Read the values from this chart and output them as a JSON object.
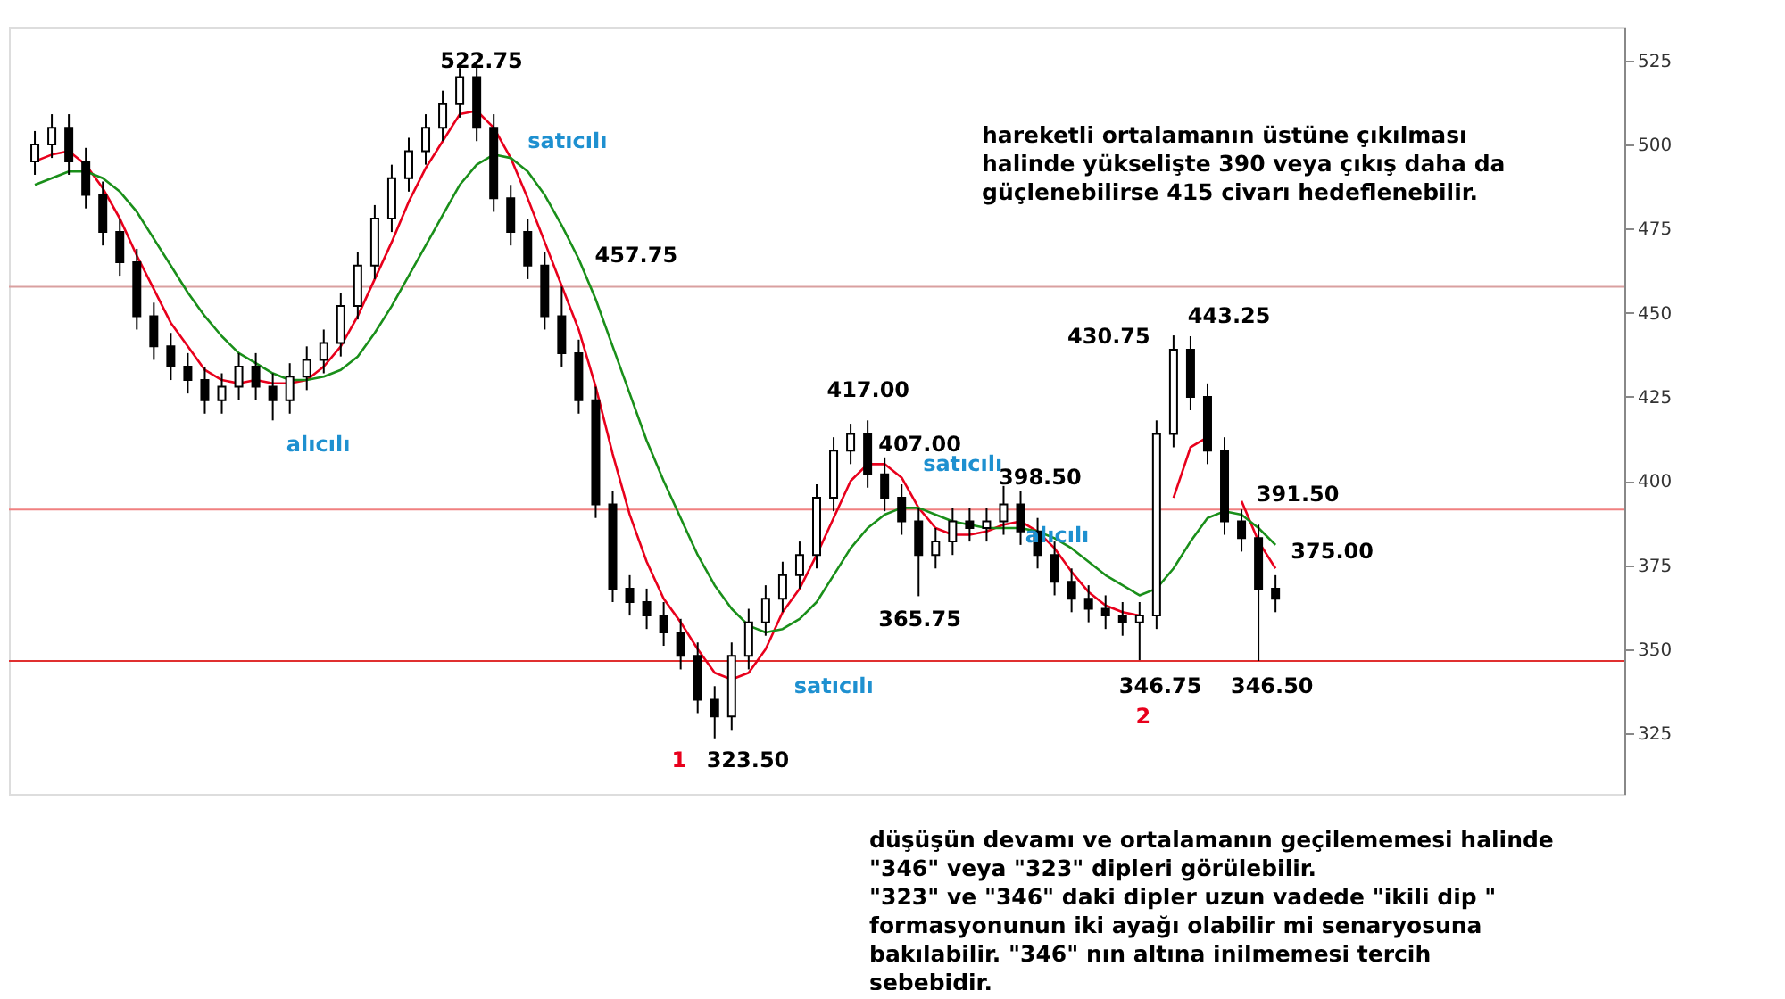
{
  "chart_data": {
    "type": "candlestick",
    "categories": [
      null,
      null,
      null,
      null,
      null,
      null,
      null,
      null,
      null,
      null,
      null,
      null,
      null,
      null,
      null,
      null,
      null,
      null,
      null,
      null,
      null,
      null,
      null,
      null,
      null,
      null,
      null,
      null,
      null,
      null,
      null,
      null,
      null,
      null,
      null,
      null,
      null,
      null,
      null,
      null,
      null,
      null,
      null,
      null,
      null,
      null,
      null,
      null,
      null,
      null,
      null,
      null,
      null,
      null,
      null,
      null,
      null,
      null,
      null,
      null,
      null,
      null,
      null,
      null,
      null,
      null,
      null,
      null,
      null,
      null,
      null,
      null,
      null,
      null
    ],
    "ohlc": [
      [
        495,
        504,
        491,
        500
      ],
      [
        500,
        509,
        496,
        505
      ],
      [
        505,
        509,
        491,
        495
      ],
      [
        495,
        499,
        481,
        485
      ],
      [
        485,
        489,
        470,
        474
      ],
      [
        474,
        478,
        461,
        465
      ],
      [
        465,
        469,
        445,
        449
      ],
      [
        449,
        453,
        436,
        440
      ],
      [
        440,
        444,
        430,
        434
      ],
      [
        434,
        438,
        426,
        430
      ],
      [
        430,
        434,
        420,
        424
      ],
      [
        424,
        432,
        420,
        428
      ],
      [
        428,
        438,
        424,
        434
      ],
      [
        434,
        438,
        424,
        428
      ],
      [
        428,
        432,
        418,
        424
      ],
      [
        424,
        435,
        420,
        431
      ],
      [
        431,
        440,
        427,
        436
      ],
      [
        436,
        445,
        432,
        441
      ],
      [
        441,
        456,
        437,
        452
      ],
      [
        452,
        468,
        448,
        464
      ],
      [
        464,
        482,
        460,
        478
      ],
      [
        478,
        494,
        474,
        490
      ],
      [
        490,
        502,
        486,
        498
      ],
      [
        498,
        509,
        494,
        505
      ],
      [
        505,
        516,
        501,
        512
      ],
      [
        512,
        522.75,
        508,
        520
      ],
      [
        520,
        524,
        501,
        505
      ],
      [
        505,
        509,
        480,
        484
      ],
      [
        484,
        488,
        470,
        474
      ],
      [
        474,
        478,
        460,
        464
      ],
      [
        464,
        468,
        445,
        449
      ],
      [
        449,
        457.75,
        434,
        438
      ],
      [
        438,
        442,
        420,
        424
      ],
      [
        424,
        428,
        389,
        393
      ],
      [
        393,
        397,
        364,
        368
      ],
      [
        368,
        372,
        360,
        364
      ],
      [
        364,
        368,
        356,
        360
      ],
      [
        360,
        364,
        351,
        355
      ],
      [
        355,
        359,
        344,
        348
      ],
      [
        348,
        352,
        331,
        335
      ],
      [
        335,
        339,
        323.5,
        330
      ],
      [
        330,
        352,
        326,
        348
      ],
      [
        348,
        362,
        344,
        358
      ],
      [
        358,
        369,
        354,
        365
      ],
      [
        365,
        376,
        361,
        372
      ],
      [
        372,
        382,
        368,
        378
      ],
      [
        378,
        399,
        374,
        395
      ],
      [
        395,
        413,
        391,
        409
      ],
      [
        409,
        417,
        405,
        414
      ],
      [
        414,
        418,
        398,
        402
      ],
      [
        402,
        407,
        391,
        395
      ],
      [
        395,
        399,
        384,
        388
      ],
      [
        388,
        392,
        365.75,
        378
      ],
      [
        378,
        386,
        374,
        382
      ],
      [
        382,
        392,
        378,
        388
      ],
      [
        388,
        392,
        382,
        386
      ],
      [
        386,
        392,
        382,
        388
      ],
      [
        388,
        398.5,
        384,
        393
      ],
      [
        393,
        397,
        381,
        385
      ],
      [
        385,
        389,
        374,
        378
      ],
      [
        378,
        382,
        366,
        370
      ],
      [
        370,
        374,
        361,
        365
      ],
      [
        365,
        369,
        358,
        362
      ],
      [
        362,
        366,
        356,
        360
      ],
      [
        360,
        364,
        354,
        358
      ],
      [
        358,
        364,
        346.75,
        360
      ],
      [
        360,
        418,
        356,
        414
      ],
      [
        414,
        443.25,
        410,
        439
      ],
      [
        439,
        443,
        421,
        425
      ],
      [
        425,
        429,
        405,
        409
      ],
      [
        409,
        413,
        384,
        388
      ],
      [
        388,
        391.5,
        379,
        383
      ],
      [
        383,
        387,
        346.5,
        368
      ],
      [
        368,
        372,
        361,
        365
      ]
    ],
    "series": [
      {
        "type": "line",
        "color": "#e8001c",
        "values": [
          495,
          497,
          498,
          494,
          487,
          478,
          467,
          457,
          447,
          440,
          433,
          430,
          429,
          430,
          429,
          429,
          430,
          434,
          440,
          449,
          460,
          471,
          483,
          493,
          501,
          509,
          510,
          505,
          496,
          484,
          471,
          458,
          445,
          428,
          408,
          390,
          376,
          365,
          358,
          350,
          343,
          341,
          343,
          350,
          361,
          368,
          378,
          389,
          400,
          405,
          405,
          401,
          392,
          386,
          384,
          384,
          385,
          387,
          388,
          385,
          380,
          373,
          367,
          363,
          361,
          360,
          null,
          395,
          410,
          413,
          null,
          394,
          382,
          374
        ]
      },
      {
        "type": "line",
        "color": "#1a8f1a",
        "values": [
          488,
          490,
          492,
          492,
          490,
          486,
          480,
          472,
          464,
          456,
          449,
          443,
          438,
          435,
          432,
          430,
          430,
          431,
          433,
          437,
          444,
          452,
          461,
          470,
          479,
          488,
          494,
          497,
          496,
          492,
          485,
          476,
          466,
          454,
          440,
          426,
          412,
          400,
          389,
          378,
          369,
          362,
          357,
          355,
          356,
          359,
          364,
          372,
          380,
          386,
          390,
          392,
          392,
          390,
          388,
          387,
          386,
          386,
          386,
          385,
          383,
          380,
          376,
          372,
          369,
          366,
          368,
          374,
          382,
          389,
          391,
          390,
          386,
          381
        ]
      }
    ],
    "ylim": [
      307,
      535
    ],
    "yticks": [
      325,
      350,
      375,
      400,
      425,
      450,
      475,
      500,
      525
    ],
    "tick_labels": "y",
    "grid": false,
    "ref_lines": [
      {
        "axis": "y",
        "value": 457.75,
        "color": "#d9a0a0"
      },
      {
        "axis": "y",
        "value": 391.5,
        "color": "#f08080"
      },
      {
        "axis": "y",
        "value": 346.5,
        "color": "#e03030"
      }
    ],
    "annotations": [
      "522.75",
      "457.75",
      "417.00",
      "407.00",
      "398.50",
      "365.75",
      "430.75",
      "443.25",
      "391.50",
      "375.00",
      "346.75",
      "346.50",
      "323.50",
      "satıcılı",
      "alıcılı",
      "satıcılı",
      "satıcılı",
      "alıcılı",
      "1",
      "2",
      "hareketli ortalamanın üstüne çıkılması\nhalinde yükselişte 390 veya çıkış daha da\ngüçlenebilirse  415 civarı hedeflenebilir.",
      "düşüşün devamı ve ortalamanın geçilememesi halinde\n\"346\" veya \"323\" dipleri görülebilir.\n\"323\" ve \"346\" daki dipler uzun vadede \"ikili dip \"\nformasyonunun iki ayağı olabilir mi senaryosuna\nbakılabilir. \"346\" nın altına inilmemesi tercih\nsebebidir."
    ]
  }
}
